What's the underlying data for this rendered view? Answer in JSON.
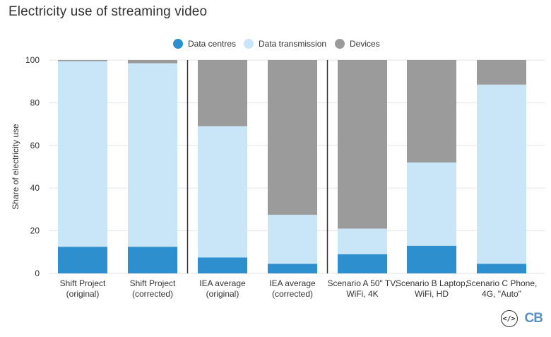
{
  "title": "Electricity use of streaming video",
  "footer": {
    "embed_icon": "code-embed-icon",
    "logo_text": "CB"
  },
  "colors": {
    "data_centres": "#2e8fce",
    "data_transmission": "#c9e5f8",
    "devices": "#9b9b9b",
    "gridline": "#e6e6e6",
    "separator": "#333333",
    "text": "#333333"
  },
  "chart_data": {
    "type": "bar",
    "stacked": true,
    "title": "Electricity use of streaming video",
    "xlabel": "",
    "ylabel": "Share of electricity use",
    "ylim": [
      0,
      100
    ],
    "yticks": [
      0,
      20,
      40,
      60,
      80,
      100
    ],
    "grid": true,
    "legend_position": "top-center",
    "categories": [
      "Shift Project (original)",
      "Shift Project (corrected)",
      "IEA average (original)",
      "IEA average (corrected)",
      "Scenario A 50\" TV, WiFi, 4K",
      "Scenario B Laptop, WiFi, HD",
      "Scenario C Phone, 4G, \"Auto\""
    ],
    "category_lines": [
      [
        "Shift Project",
        "(original)"
      ],
      [
        "Shift Project",
        "(corrected)"
      ],
      [
        "IEA average",
        "(original)"
      ],
      [
        "IEA average",
        "(corrected)"
      ],
      [
        "Scenario A 50\" TV,",
        "WiFi, 4K"
      ],
      [
        "Scenario B Laptop,",
        "WiFi, HD"
      ],
      [
        "Scenario C Phone,",
        "4G, \"Auto\""
      ]
    ],
    "separators_after": [
      1,
      3
    ],
    "series": [
      {
        "name": "Data centres",
        "values": [
          12.5,
          12.5,
          7.5,
          4.5,
          9,
          13,
          4.5
        ]
      },
      {
        "name": "Data transmission",
        "values": [
          87,
          86,
          61.5,
          23,
          12,
          39,
          84
        ]
      },
      {
        "name": "Devices",
        "values": [
          0.5,
          1.5,
          31,
          72.5,
          79,
          48,
          11.5
        ]
      }
    ]
  }
}
